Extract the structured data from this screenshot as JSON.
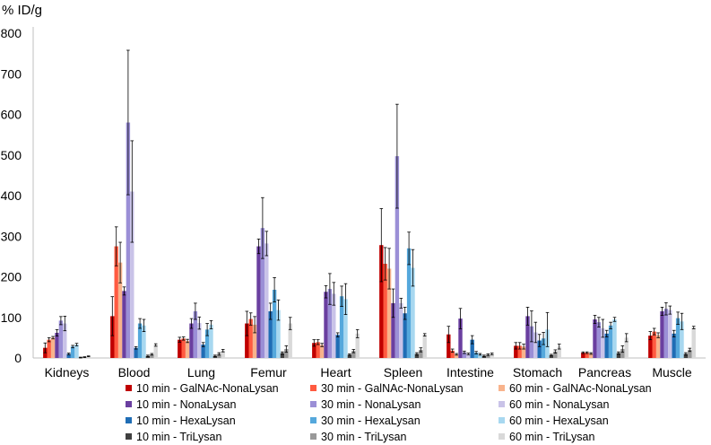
{
  "chart_data": {
    "type": "bar",
    "title": "",
    "ylabel": "% ID/g",
    "xlabel": "",
    "ylim": [
      0,
      800
    ],
    "yticks": [
      0,
      100,
      200,
      300,
      400,
      500,
      600,
      700,
      800
    ],
    "grid": false,
    "legend_position": "bottom",
    "categories": [
      "Kidneys",
      "Blood",
      "Lung",
      "Femur",
      "Heart",
      "Spleen",
      "Intestine",
      "Stomach",
      "Pancreas",
      "Muscle"
    ],
    "series": [
      {
        "name": "10 min - GalNAc-NonaLysan",
        "color": "#c00000",
        "values": [
          25,
          103,
          45,
          85,
          37,
          278,
          58,
          30,
          13,
          55
        ],
        "errors": [
          12,
          48,
          6,
          30,
          8,
          90,
          20,
          8,
          2,
          10
        ]
      },
      {
        "name": "30 min - GalNAc-NonaLysan",
        "color": "#ff5a40",
        "values": [
          45,
          275,
          48,
          96,
          39,
          232,
          18,
          30,
          13,
          65
        ],
        "errors": [
          5,
          48,
          4,
          15,
          6,
          40,
          4,
          8,
          2,
          8
        ]
      },
      {
        "name": "60 min - GalNAc-NonaLysan",
        "color": "#f8b38c",
        "values": [
          50,
          235,
          42,
          82,
          32,
          220,
          9,
          28,
          11,
          56
        ],
        "errors": [
          3,
          50,
          4,
          20,
          4,
          50,
          2,
          6,
          2,
          6
        ]
      },
      {
        "name": "10 min - NonaLysan",
        "color": "#6a3fa0",
        "values": [
          62,
          165,
          85,
          275,
          163,
          135,
          97,
          103,
          95,
          115
        ],
        "errors": [
          8,
          10,
          12,
          18,
          15,
          35,
          25,
          22,
          10,
          10
        ]
      },
      {
        "name": "30 min - NonaLysan",
        "color": "#9b8fd6",
        "values": [
          92,
          580,
          115,
          320,
          170,
          497,
          14,
          78,
          88,
          121
        ],
        "errors": [
          10,
          178,
          20,
          75,
          38,
          128,
          3,
          38,
          12,
          15
        ]
      },
      {
        "name": "60 min - NonaLysan",
        "color": "#c9c3e8",
        "values": [
          85,
          410,
          86,
          282,
          158,
          135,
          10,
          63,
          73,
          118
        ],
        "errors": [
          18,
          125,
          15,
          30,
          28,
          12,
          2,
          25,
          22,
          10
        ]
      },
      {
        "name": "10 min - HexaLysan",
        "color": "#1f6db5",
        "values": [
          10,
          25,
          33,
          115,
          57,
          110,
          45,
          43,
          60,
          60
        ],
        "errors": [
          2,
          3,
          5,
          20,
          5,
          15,
          10,
          15,
          8,
          8
        ]
      },
      {
        "name": "30 min - HexaLysan",
        "color": "#55a8dc",
        "values": [
          28,
          85,
          70,
          168,
          152,
          270,
          13,
          48,
          80,
          98
        ],
        "errors": [
          3,
          12,
          15,
          30,
          25,
          40,
          3,
          15,
          8,
          15
        ]
      },
      {
        "name": "60 min - HexaLysan",
        "color": "#a8d8f0",
        "values": [
          33,
          80,
          82,
          118,
          145,
          222,
          9,
          70,
          95,
          90
        ],
        "errors": [
          3,
          15,
          10,
          25,
          38,
          45,
          2,
          42,
          5,
          20
        ]
      },
      {
        "name": "10 min - TriLysan",
        "color": "#404040",
        "values": [
          1,
          5,
          5,
          12,
          8,
          10,
          5,
          7,
          12,
          10
        ],
        "errors": [
          1,
          2,
          2,
          3,
          2,
          3,
          2,
          2,
          3,
          3
        ]
      },
      {
        "name": "30 min - TriLysan",
        "color": "#999999",
        "values": [
          2,
          9,
          10,
          22,
          17,
          20,
          8,
          16,
          22,
          20
        ],
        "errors": [
          1,
          2,
          3,
          8,
          4,
          5,
          2,
          4,
          8,
          4
        ]
      },
      {
        "name": "60 min - TriLysan",
        "color": "#d9d9d9",
        "values": [
          4,
          32,
          18,
          85,
          60,
          57,
          10,
          28,
          50,
          75
        ],
        "errors": [
          1,
          3,
          3,
          15,
          10,
          3,
          2,
          6,
          10,
          3
        ]
      }
    ]
  }
}
